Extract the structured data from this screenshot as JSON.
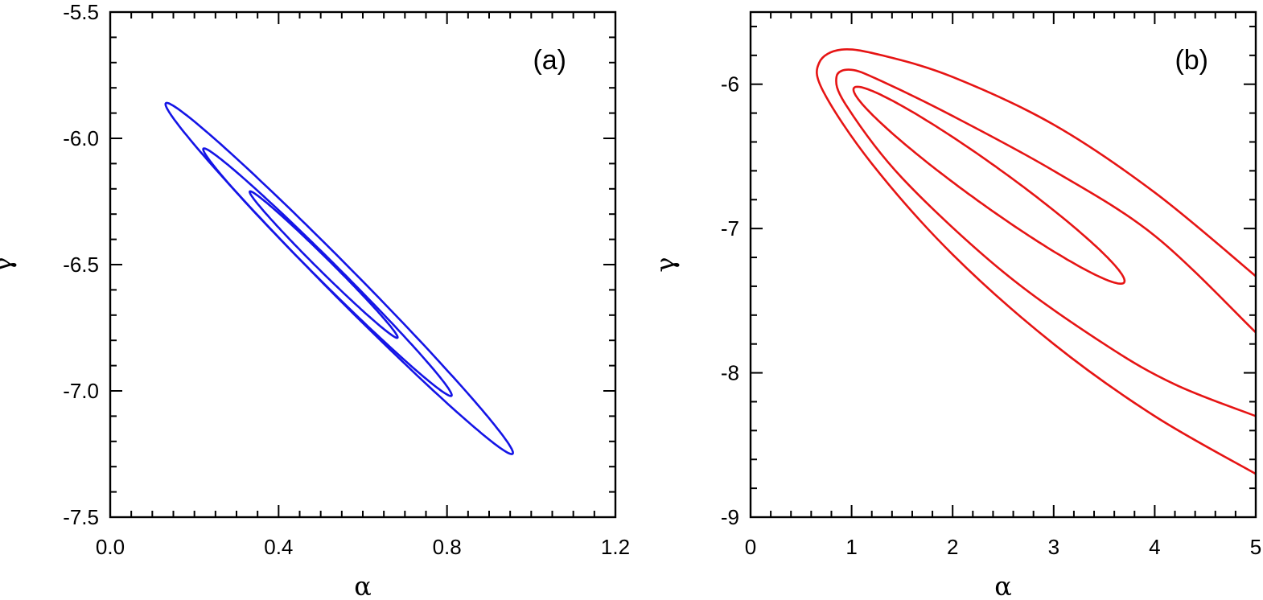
{
  "chart_data": [
    {
      "type": "line",
      "subtype": "confidence-contours",
      "panel_label": "(a)",
      "xlabel": "α",
      "ylabel": "γ",
      "xlim": [
        0.0,
        1.2
      ],
      "ylim": [
        -7.5,
        -5.5
      ],
      "x_ticks": [
        {
          "value": 0.0,
          "label": "0.0"
        },
        {
          "value": 0.4,
          "label": "0.4"
        },
        {
          "value": 0.8,
          "label": "0.8"
        },
        {
          "value": 1.2,
          "label": "1.2"
        }
      ],
      "y_ticks": [
        {
          "value": -5.5,
          "label": "-5.5"
        },
        {
          "value": -6.0,
          "label": "-6.0"
        },
        {
          "value": -6.5,
          "label": "-6.5"
        },
        {
          "value": -7.0,
          "label": "-7.0"
        },
        {
          "value": -7.5,
          "label": "-7.5"
        }
      ],
      "x_minor_step": 0.05,
      "y_minor_step": 0.1,
      "line_color": "#1414e6",
      "contours": [
        {
          "name": "inner contour",
          "ellipse": {
            "center": [
              0.507,
              -6.5
            ],
            "endpoint": [
              0.682,
              -6.79
            ],
            "half_width": 0.0188
          }
        },
        {
          "name": "middle contour",
          "ellipse": {
            "center": [
              0.516,
              -6.53
            ],
            "endpoint": [
              0.81,
              -7.02
            ],
            "half_width": 0.0305
          }
        },
        {
          "name": "outer contour",
          "ellipse": {
            "center": [
              0.544,
              -6.555
            ],
            "endpoint": [
              0.955,
              -7.25
            ],
            "half_width": 0.0425
          }
        }
      ]
    },
    {
      "type": "line",
      "subtype": "confidence-contours",
      "panel_label": "(b)",
      "xlabel": "α",
      "ylabel": "γ",
      "xlim": [
        0,
        5
      ],
      "ylim": [
        -9,
        -5.5
      ],
      "x_ticks": [
        {
          "value": 0,
          "label": "0"
        },
        {
          "value": 1,
          "label": "1"
        },
        {
          "value": 2,
          "label": "2"
        },
        {
          "value": 3,
          "label": "3"
        },
        {
          "value": 4,
          "label": "4"
        },
        {
          "value": 5,
          "label": "5"
        }
      ],
      "y_ticks": [
        {
          "value": -6,
          "label": "-6"
        },
        {
          "value": -7,
          "label": "-7"
        },
        {
          "value": -8,
          "label": "-8"
        },
        {
          "value": -9,
          "label": "-9"
        }
      ],
      "x_minor_step": 0.2,
      "y_minor_step": 0.2,
      "line_color": "#e61414",
      "contours": [
        {
          "name": "inner contour",
          "ellipse": {
            "center": [
              2.36,
              -6.7
            ],
            "endpoint": [
              3.7,
              -7.37
            ],
            "half_width": 0.145
          }
        },
        {
          "name": "middle contour",
          "points": [
            [
              5.0,
              -7.72
            ],
            [
              4.0,
              -7.05
            ],
            [
              3.0,
              -6.6
            ],
            [
              2.0,
              -6.22
            ],
            [
              1.3,
              -5.98
            ],
            [
              1.0,
              -5.9
            ],
            [
              0.85,
              -5.95
            ],
            [
              0.95,
              -6.15
            ],
            [
              1.5,
              -6.65
            ],
            [
              2.5,
              -7.3
            ],
            [
              3.5,
              -7.8
            ],
            [
              4.2,
              -8.08
            ],
            [
              5.0,
              -8.3
            ]
          ]
        },
        {
          "name": "outer contour",
          "points": [
            [
              5.0,
              -7.33
            ],
            [
              4.0,
              -6.75
            ],
            [
              3.0,
              -6.28
            ],
            [
              2.0,
              -5.95
            ],
            [
              1.3,
              -5.8
            ],
            [
              0.9,
              -5.76
            ],
            [
              0.68,
              -5.85
            ],
            [
              0.72,
              -6.05
            ],
            [
              1.2,
              -6.55
            ],
            [
              2.0,
              -7.18
            ],
            [
              3.0,
              -7.8
            ],
            [
              4.0,
              -8.3
            ],
            [
              5.0,
              -8.7
            ]
          ]
        }
      ]
    }
  ]
}
